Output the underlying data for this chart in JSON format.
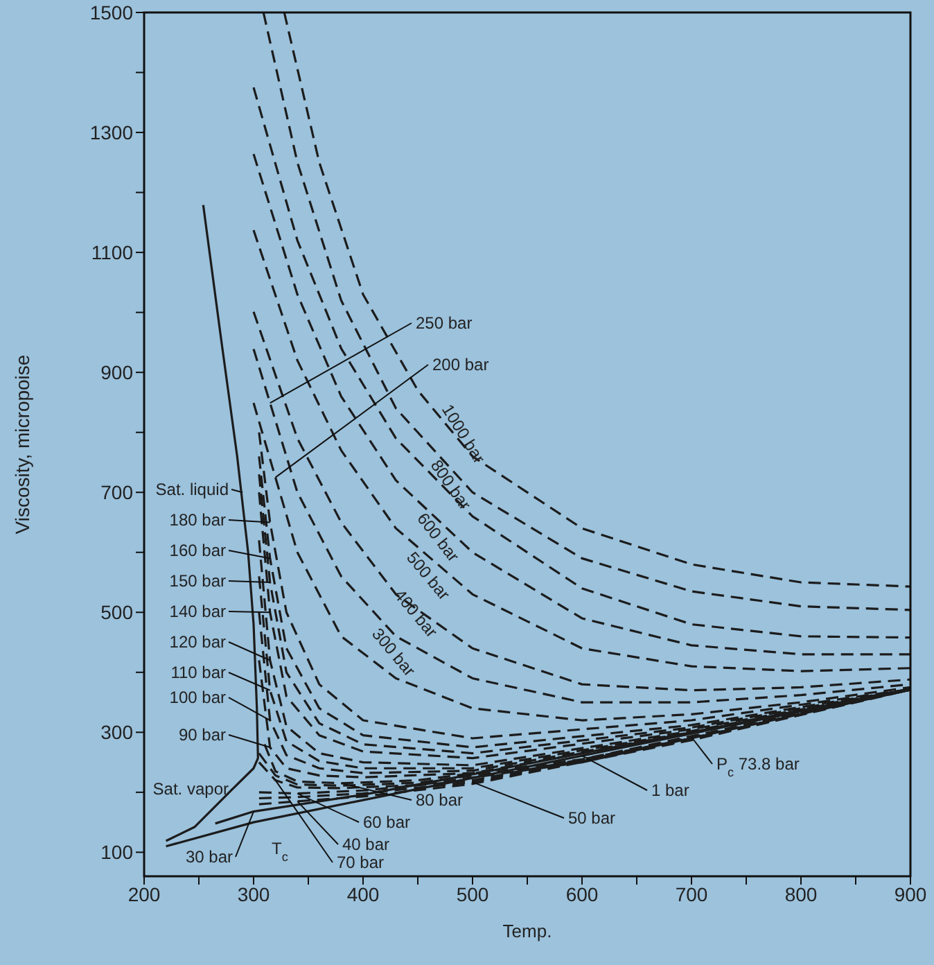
{
  "chart_data": {
    "type": "line",
    "xlabel": "Temp.",
    "ylabel": "Viscosity, micropoise",
    "xlim": [
      200,
      900
    ],
    "ylim": [
      60,
      1500
    ],
    "xticks": [
      200,
      {
        "value": 250,
        "label": null
      },
      300,
      {
        "value": 350,
        "label": null
      },
      400,
      {
        "value": 450,
        "label": null
      },
      500,
      {
        "value": 550,
        "label": null
      },
      600,
      {
        "value": 650,
        "label": null
      },
      700,
      {
        "value": 750,
        "label": null
      },
      800,
      {
        "value": 850,
        "label": null
      },
      900
    ],
    "yticks": [
      100,
      {
        "value": 200,
        "label": null
      },
      300,
      {
        "value": 400,
        "label": null
      },
      500,
      {
        "value": 600,
        "label": null
      },
      700,
      {
        "value": 800,
        "label": null
      },
      900,
      {
        "value": 1000,
        "label": null
      },
      1100,
      {
        "value": 1200,
        "label": null
      },
      1300,
      {
        "value": 1400,
        "label": null
      },
      1500
    ],
    "marker": "none",
    "series": [
      {
        "color": "#1c1c1c",
        "line_style": "dashed",
        "x": [
          328,
          360,
          400,
          450,
          500,
          600,
          700,
          800,
          900
        ],
        "values": [
          1500,
          1250,
          1030,
          870,
          760,
          640,
          580,
          550,
          543
        ]
      },
      {
        "color": "#1c1c1c",
        "line_style": "dashed",
        "x": [
          309,
          340,
          380,
          430,
          500,
          600,
          700,
          800,
          900
        ],
        "values": [
          1500,
          1250,
          1020,
          840,
          700,
          590,
          535,
          510,
          504
        ]
      },
      {
        "color": "#1c1c1c",
        "line_style": "dashed",
        "x": [
          300,
          340,
          380,
          430,
          500,
          600,
          700,
          800,
          900
        ],
        "values": [
          1375,
          1120,
          940,
          790,
          660,
          540,
          480,
          460,
          458
        ]
      },
      {
        "color": "#1c1c1c",
        "line_style": "dashed",
        "x": [
          300,
          340,
          380,
          430,
          500,
          600,
          700,
          800,
          900
        ],
        "values": [
          1264,
          1030,
          860,
          720,
          600,
          490,
          445,
          430,
          430
        ]
      },
      {
        "color": "#1c1c1c",
        "line_style": "dashed",
        "x": [
          300,
          340,
          380,
          430,
          500,
          600,
          700,
          800,
          900
        ],
        "values": [
          1137,
          920,
          770,
          640,
          530,
          440,
          410,
          402,
          407
        ]
      },
      {
        "color": "#1c1c1c",
        "line_style": "dashed",
        "x": [
          300,
          340,
          380,
          430,
          500,
          600,
          700,
          800,
          900
        ],
        "values": [
          1001,
          790,
          650,
          530,
          440,
          380,
          370,
          375,
          388
        ]
      },
      {
        "color": "#1c1c1c",
        "line_style": "dashed",
        "x": [
          300,
          340,
          380,
          430,
          500,
          600,
          700,
          800,
          900
        ],
        "values": [
          939,
          700,
          560,
          460,
          390,
          350,
          350,
          362,
          380
        ]
      },
      {
        "color": "#1c1c1c",
        "line_style": "dashed",
        "x": [
          300,
          340,
          380,
          430,
          500,
          600,
          700,
          800,
          900
        ],
        "values": [
          849,
          600,
          460,
          390,
          340,
          320,
          330,
          350,
          375
        ]
      },
      {
        "color": "#1c1c1c",
        "line_style": "dashed",
        "x": [
          305,
          315,
          330,
          360,
          400,
          500,
          700,
          900
        ],
        "values": [
          800,
          650,
          500,
          380,
          320,
          290,
          320,
          372
        ]
      },
      {
        "color": "#1c1c1c",
        "line_style": "dashed",
        "x": [
          305,
          315,
          330,
          360,
          400,
          500,
          700,
          900
        ],
        "values": [
          760,
          590,
          440,
          340,
          295,
          275,
          312,
          372
        ]
      },
      {
        "color": "#1c1c1c",
        "line_style": "dashed",
        "x": [
          305,
          315,
          330,
          360,
          400,
          500,
          700,
          900
        ],
        "values": [
          730,
          550,
          400,
          315,
          280,
          265,
          308,
          372
        ]
      },
      {
        "color": "#1c1c1c",
        "line_style": "dashed",
        "x": [
          305,
          315,
          330,
          360,
          400,
          500,
          700,
          900
        ],
        "values": [
          700,
          500,
          360,
          295,
          268,
          257,
          305,
          371
        ]
      },
      {
        "color": "#1c1c1c",
        "line_style": "dashed",
        "x": [
          305,
          315,
          330,
          360,
          400,
          500,
          700,
          900
        ],
        "values": [
          620,
          420,
          310,
          265,
          250,
          245,
          302,
          371
        ]
      },
      {
        "color": "#1c1c1c",
        "line_style": "dashed",
        "x": [
          305,
          315,
          330,
          360,
          400,
          500,
          700,
          900
        ],
        "values": [
          560,
          370,
          285,
          252,
          240,
          240,
          300,
          371
        ]
      },
      {
        "color": "#1c1c1c",
        "line_style": "dashed",
        "x": [
          305,
          315,
          330,
          360,
          400,
          500,
          700,
          900
        ],
        "values": [
          500,
          320,
          262,
          240,
          232,
          236,
          299,
          371
        ]
      },
      {
        "color": "#1c1c1c",
        "line_style": "dashed",
        "x": [
          305,
          315,
          330,
          360,
          400,
          500,
          700,
          900
        ],
        "values": [
          420,
          275,
          240,
          228,
          225,
          232,
          298,
          371
        ]
      },
      {
        "color": "#1c1c1c",
        "line_style": "dashed",
        "x": [
          310,
          320,
          340,
          380,
          450,
          600,
          900
        ],
        "values": [
          280,
          235,
          218,
          215,
          220,
          255,
          371
        ]
      },
      {
        "color": "#1c1c1c",
        "line_style": "dashed",
        "x": [
          305,
          320,
          340,
          380,
          450,
          600,
          900
        ],
        "values": [
          265,
          228,
          213,
          211,
          216,
          252,
          371
        ]
      },
      {
        "color": "#1c1c1c",
        "line_style": "dashed",
        "x": [
          305,
          320,
          340,
          380,
          450,
          600,
          900
        ],
        "values": [
          250,
          220,
          208,
          207,
          212,
          250,
          371
        ]
      },
      {
        "color": "#1c1c1c",
        "line_style": "dashed",
        "x": [
          305,
          340,
          400,
          500,
          700,
          900
        ],
        "values": [
          200,
          198,
          203,
          220,
          290,
          371
        ]
      },
      {
        "color": "#1c1c1c",
        "line_style": "dashed",
        "x": [
          305,
          340,
          400,
          500,
          700,
          900
        ],
        "values": [
          190,
          192,
          198,
          217,
          288,
          371
        ]
      },
      {
        "color": "#1c1c1c",
        "line_style": "dashed",
        "x": [
          305,
          340,
          400,
          500,
          700,
          900
        ],
        "values": [
          180,
          185,
          193,
          214,
          287,
          371
        ]
      },
      {
        "color": "#1c1c1c",
        "line_style": "solid",
        "x": [
          265,
          300,
          400,
          500,
          700,
          900
        ],
        "values": [
          148,
          168,
          196,
          230,
          300,
          372
        ]
      },
      {
        "color": "#1c1c1c",
        "line_style": "solid",
        "x": [
          220,
          300,
          400,
          500,
          600,
          700,
          800,
          900
        ],
        "values": [
          110,
          150,
          187,
          224,
          261,
          298,
          335,
          371
        ]
      },
      {
        "color": "#1c1c1c",
        "line_style": "solid",
        "x": [
          254,
          270,
          285,
          295,
          300,
          303,
          304,
          300,
          280,
          246,
          220
        ],
        "values": [
          1179,
          960,
          760,
          600,
          480,
          340,
          257,
          240,
          204,
          142,
          119
        ]
      }
    ],
    "annotations": [
      {
        "text": "250 bar",
        "x": 315,
        "y": 849
      },
      {
        "text": "200 bar",
        "x": 320,
        "y": 725
      },
      {
        "text": "Sat. liquid",
        "x": 290,
        "y": 700
      },
      {
        "text": "180 bar",
        "x": 315,
        "y": 650
      },
      {
        "text": "160 bar",
        "x": 315,
        "y": 590
      },
      {
        "text": "150 bar",
        "x": 315,
        "y": 550
      },
      {
        "text": "140 bar",
        "x": 315,
        "y": 500
      },
      {
        "text": "120 bar",
        "x": 315,
        "y": 420
      },
      {
        "text": "110 bar",
        "x": 315,
        "y": 370
      },
      {
        "text": "100 bar",
        "x": 315,
        "y": 320
      },
      {
        "text": "90 bar",
        "x": 315,
        "y": 275
      },
      {
        "text": "Sat. vapor",
        "x": 280,
        "y": 204
      },
      {
        "text": "30 bar",
        "x": 300,
        "y": 168
      },
      {
        "text": "80 bar",
        "x": 380,
        "y": 215
      },
      {
        "text": "60 bar",
        "x": 340,
        "y": 198
      },
      {
        "text": "40 bar",
        "x": 340,
        "y": 185
      },
      {
        "text": "70 bar",
        "x": 320,
        "y": 220
      },
      {
        "text": "50 bar",
        "x": 500,
        "y": 217
      },
      {
        "text": "1 bar",
        "x": 600,
        "y": 261
      },
      {
        "text": "P$_{c}$ 73.8 bar",
        "x": 700,
        "y": 292
      },
      "T$_{c}$",
      "1000 bar",
      "800 bar",
      "600 bar",
      "500 bar",
      "400 bar",
      "300 bar"
    ]
  }
}
